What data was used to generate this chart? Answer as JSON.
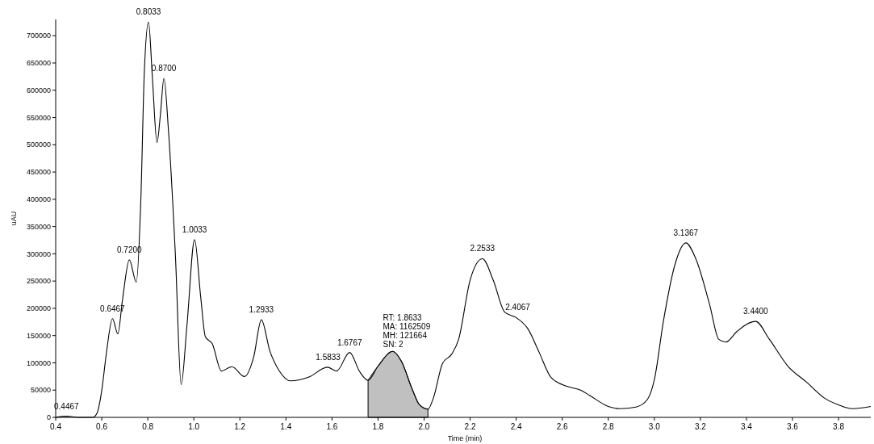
{
  "chart_data": {
    "type": "line",
    "xlabel": "Time (min)",
    "ylabel": "uAU",
    "x": [
      0.4,
      0.4467,
      0.5,
      0.562,
      0.58,
      0.6,
      0.62,
      0.6467,
      0.67,
      0.69,
      0.72,
      0.75,
      0.77,
      0.785,
      0.8033,
      0.82,
      0.84,
      0.855,
      0.87,
      0.89,
      0.92,
      0.945,
      0.97,
      1.0033,
      1.03,
      1.05,
      1.08,
      1.12,
      1.165,
      1.22,
      1.26,
      1.2933,
      1.33,
      1.37,
      1.42,
      1.5,
      1.58,
      1.62,
      1.6767,
      1.72,
      1.7567,
      1.8,
      1.8633,
      1.9,
      1.95,
      1.98,
      2.0167,
      2.04,
      2.08,
      2.12,
      2.15,
      2.2,
      2.2533,
      2.3,
      2.35,
      2.4,
      2.45,
      2.5,
      2.55,
      2.62,
      2.68,
      2.72,
      2.8,
      2.85,
      2.92,
      2.97,
      3.0,
      3.04,
      3.09,
      3.1367,
      3.18,
      3.24,
      3.28,
      3.31,
      3.36,
      3.44,
      3.5,
      3.58,
      3.66,
      3.74,
      3.8,
      3.86,
      3.94
    ],
    "series": [
      {
        "color": "#000000",
        "values": [
          0,
          2000,
          0,
          0,
          8000,
          49000,
          117000,
          181000,
          153000,
          215000,
          289000,
          248000,
          401000,
          634000,
          725000,
          623000,
          504000,
          556000,
          622000,
          525000,
          297000,
          60000,
          168000,
          326000,
          220000,
          148000,
          135000,
          85000,
          93000,
          75000,
          111000,
          179000,
          122000,
          86000,
          67000,
          74000,
          92000,
          85000,
          119000,
          84000,
          68000,
          94000,
          121000,
          104000,
          50000,
          23000,
          15000,
          35000,
          99000,
          116000,
          143000,
          252000,
          291000,
          252000,
          193000,
          183000,
          163000,
          119000,
          74000,
          57000,
          50000,
          40000,
          20000,
          16000,
          19000,
          33000,
          69000,
          178000,
          281000,
          320000,
          291000,
          207000,
          143000,
          138000,
          158000,
          176000,
          143000,
          94000,
          65000,
          35000,
          23000,
          16000,
          20000
        ]
      },
      {
        "type": "area",
        "color": "#c0c0c0",
        "x": [
          1.7567,
          1.8,
          1.8633,
          1.9,
          1.95,
          1.98,
          2.0167
        ],
        "values": [
          68000,
          94000,
          121000,
          104000,
          50000,
          23000,
          15000
        ]
      }
    ],
    "xlim": [
      0.4,
      3.94
    ],
    "ylim": [
      0,
      730000
    ],
    "xticks": [
      0.4,
      0.6,
      0.8,
      {
        "value": 1,
        "label": "1.0"
      },
      1.2,
      1.4,
      1.6,
      1.8,
      {
        "value": 2,
        "label": "2.0"
      },
      2.2,
      2.4,
      2.6,
      2.8,
      {
        "value": 3,
        "label": "3.0"
      },
      3.2,
      3.4,
      3.6,
      3.8
    ],
    "yticks": [
      0,
      50000,
      100000,
      150000,
      200000,
      250000,
      300000,
      350000,
      400000,
      450000,
      500000,
      550000,
      600000,
      650000,
      700000
    ],
    "grid": false,
    "annotations": [
      {
        "text": "0.4467",
        "x": 0.4467,
        "y": 2000
      },
      {
        "text": "0.6467",
        "x": 0.6467,
        "y": 181000
      },
      {
        "text": "0.7200",
        "x": 0.72,
        "y": 289000
      },
      {
        "text": "0.8033",
        "x": 0.8033,
        "y": 725000
      },
      {
        "text": "0.8700",
        "x": 0.87,
        "y": 622000
      },
      {
        "text": "1.0033",
        "x": 1.0033,
        "y": 326000
      },
      {
        "text": "1.2933",
        "x": 1.2933,
        "y": 179000
      },
      {
        "text": "1.5833",
        "x": 1.5833,
        "y": 92000
      },
      {
        "text": "1.6767",
        "x": 1.6767,
        "y": 119000
      },
      {
        "text": "RT: 1.8633\nMA: 1162509\nMH: 121664\nSN: 2",
        "x": 1.8633,
        "y": 121000
      },
      {
        "text": "2.2533",
        "x": 2.2533,
        "y": 291000
      },
      {
        "text": "2.4067",
        "x": 2.4067,
        "y": 183000
      },
      {
        "text": "3.1367",
        "x": 3.1367,
        "y": 320000
      },
      {
        "text": "3.4400",
        "x": 3.44,
        "y": 176000
      }
    ]
  }
}
